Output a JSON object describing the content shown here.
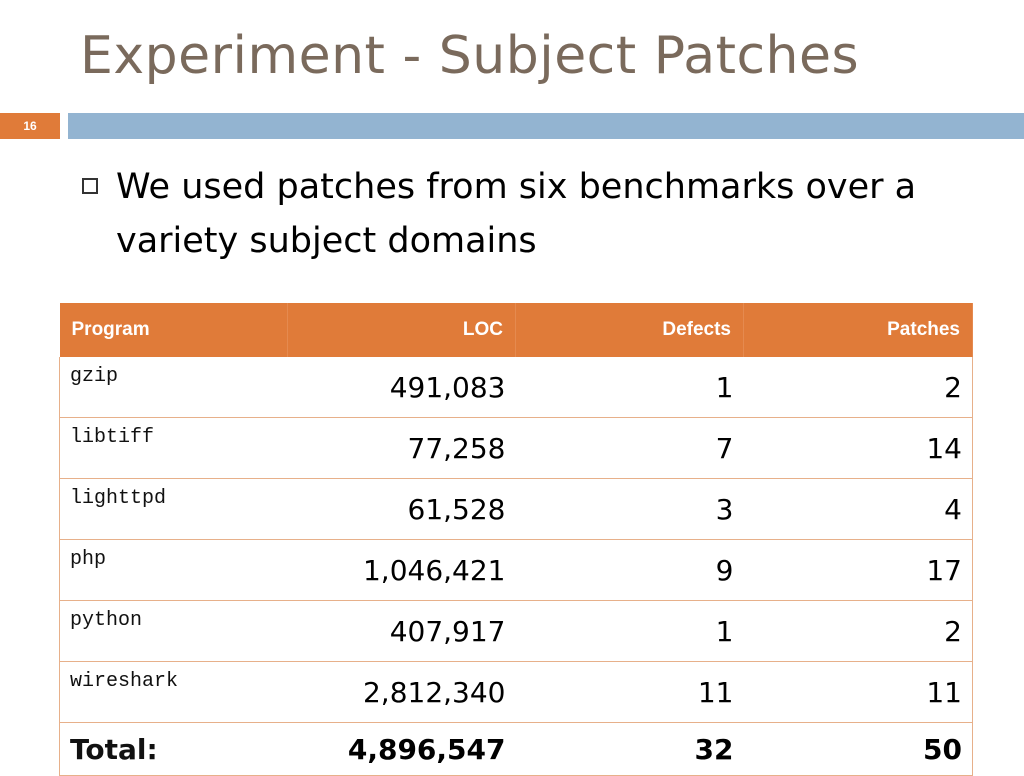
{
  "slide": {
    "title": "Experiment - Subject Patches",
    "number": "16"
  },
  "bullet": {
    "text": "We used patches from six benchmarks over a variety subject domains"
  },
  "table": {
    "headers": [
      "Program",
      "LOC",
      "Defects",
      "Patches"
    ],
    "rows": [
      [
        "gzip",
        "491,083",
        "1",
        "2"
      ],
      [
        "libtiff",
        "77,258",
        "7",
        "14"
      ],
      [
        "lighttpd",
        "61,528",
        "3",
        "4"
      ],
      [
        "php",
        "1,046,421",
        "9",
        "17"
      ],
      [
        "python",
        "407,917",
        "1",
        "2"
      ],
      [
        "wireshark",
        "2,812,340",
        "11",
        "11"
      ]
    ],
    "total": [
      "Total:",
      "4,896,547",
      "32",
      "50"
    ]
  },
  "colors": {
    "accent_orange": "#e07b39",
    "bar_blue": "#93b4d1",
    "title_brown": "#7a6a5c"
  }
}
